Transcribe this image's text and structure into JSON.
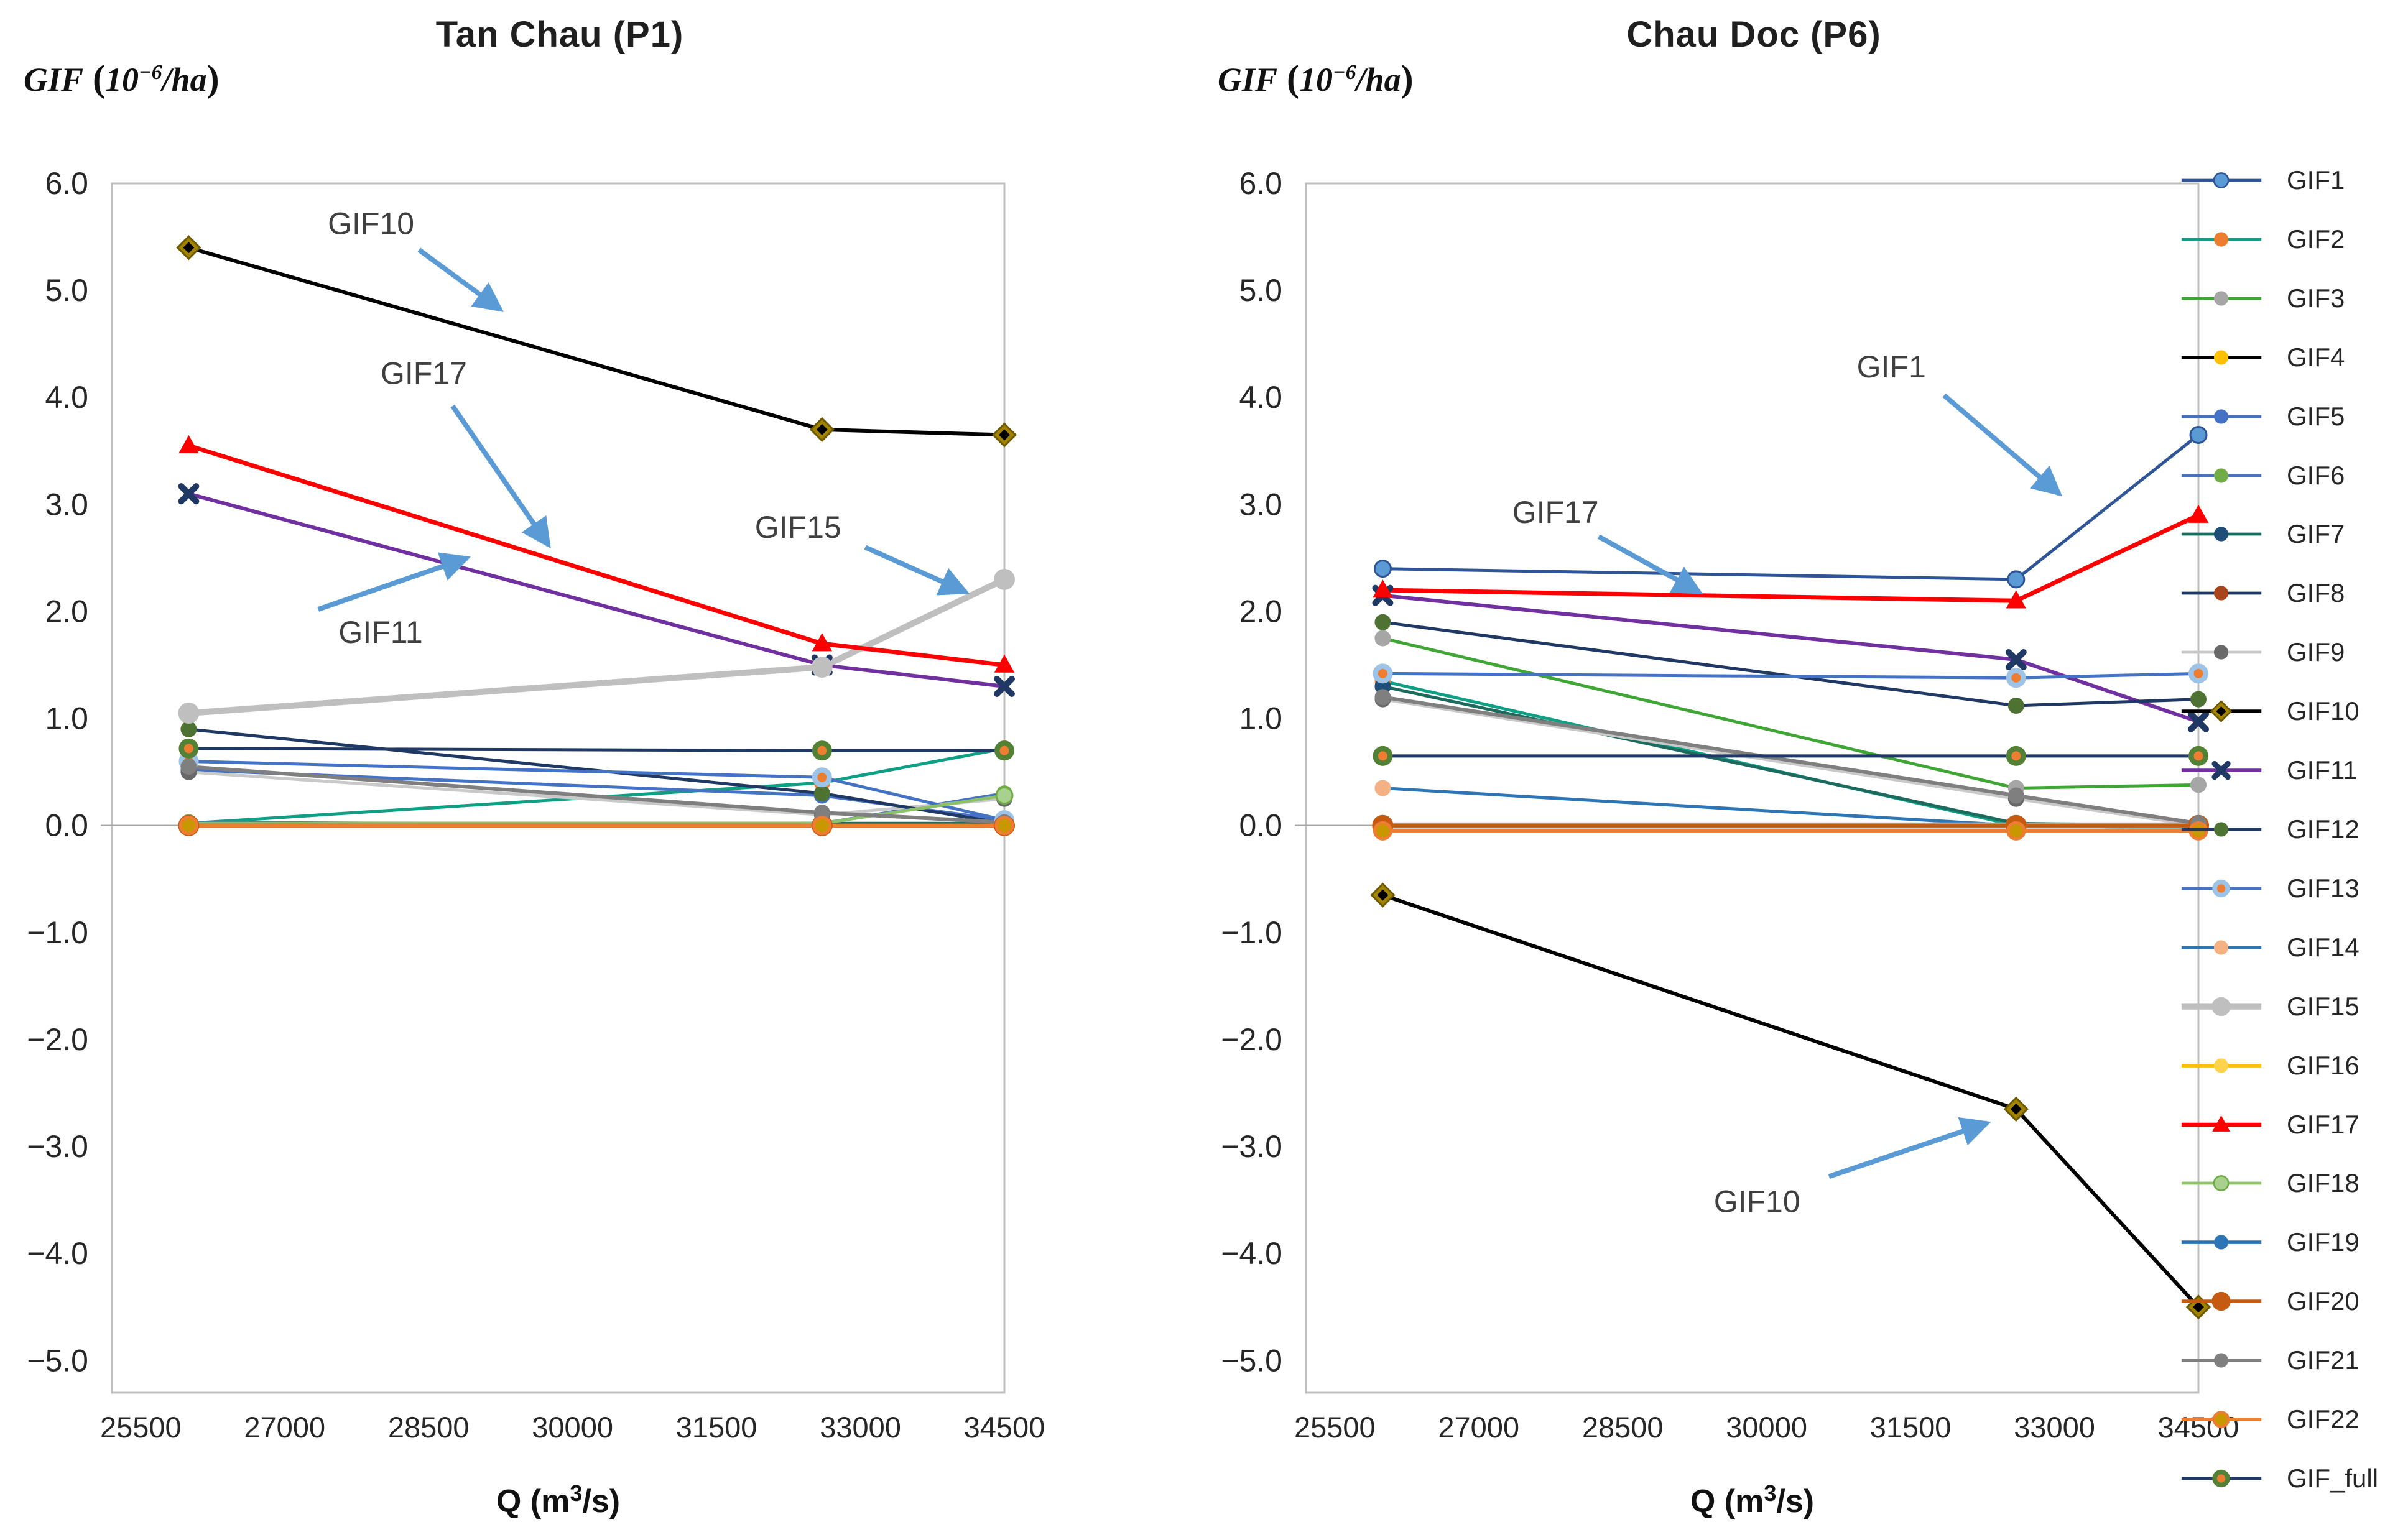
{
  "page": {
    "background": "#FFFFFF"
  },
  "axis": {
    "ylabel_gif": "GIF",
    "ylabel_open": " (",
    "ylabel_base": "10",
    "ylabel_exp": "−6",
    "ylabel_unit": "/ha",
    "ylabel_close": ")",
    "xlabel_pre": "Q (m",
    "xlabel_sup": "3",
    "xlabel_post": "/s)"
  },
  "legend": {
    "position": "right",
    "entries": [
      "GIF1",
      "GIF2",
      "GIF3",
      "GIF4",
      "GIF5",
      "GIF6",
      "GIF7",
      "GIF8",
      "GIF9",
      "GIF10",
      "GIF11",
      "GIF12",
      "GIF13",
      "GIF14",
      "GIF15",
      "GIF16",
      "GIF17",
      "GIF18",
      "GIF19",
      "GIF20",
      "GIF21",
      "GIF22",
      "GIF_full"
    ]
  },
  "series_styles": [
    {
      "name": "GIF1",
      "line": "#2F5597",
      "w": 5,
      "marker": "circle",
      "mfill": "#5B9BD5",
      "mstroke": "#2F5597",
      "mstrokew": 3
    },
    {
      "name": "GIF2",
      "line": "#0E9F84",
      "w": 5,
      "marker": "circle",
      "mfill": "#ED7D31"
    },
    {
      "name": "GIF3",
      "line": "#3FA535",
      "w": 5,
      "marker": "circle",
      "mfill": "#A6A6A6"
    },
    {
      "name": "GIF4",
      "line": "#000000",
      "w": 5,
      "marker": "circle",
      "mfill": "#FFC000"
    },
    {
      "name": "GIF5",
      "line": "#4472C4",
      "w": 5,
      "marker": "circle",
      "mfill": "#4472C4"
    },
    {
      "name": "GIF6",
      "line": "#4472C4",
      "w": 5,
      "marker": "circle",
      "mfill": "#70AD47"
    },
    {
      "name": "GIF7",
      "line": "#1D6B5E",
      "w": 5,
      "marker": "circle",
      "mfill": "#1F4E79"
    },
    {
      "name": "GIF8",
      "line": "#1F3864",
      "w": 5,
      "marker": "circle",
      "mfill": "#A9451B"
    },
    {
      "name": "GIF9",
      "line": "#C9C9C9",
      "w": 5,
      "marker": "circle",
      "mfill": "#696969"
    },
    {
      "name": "GIF10",
      "line": "#000000",
      "w": 6,
      "marker": "diamond",
      "mfill": "#A28300"
    },
    {
      "name": "GIF11",
      "line": "#7030A0",
      "w": 6,
      "marker": "x",
      "mfill": "#1F3864"
    },
    {
      "name": "GIF12",
      "line": "#203864",
      "w": 5,
      "marker": "circle",
      "mfill": "#4E7231"
    },
    {
      "name": "GIF13",
      "line": "#4472C4",
      "w": 5,
      "marker": "ring",
      "mring": "#9DC3E6",
      "mcenter": "#ED7D31"
    },
    {
      "name": "GIF14",
      "line": "#2E75B6",
      "w": 5,
      "marker": "circle",
      "mfill": "#F4B183"
    },
    {
      "name": "GIF15",
      "line": "#BFBFBF",
      "w": 10,
      "marker": "circle-big",
      "mfill": "#BFBFBF"
    },
    {
      "name": "GIF16",
      "line": "#FFC000",
      "w": 6,
      "marker": "circle",
      "mfill": "#FFD34D"
    },
    {
      "name": "GIF17",
      "line": "#FF0000",
      "w": 7,
      "marker": "triangle",
      "mfill": "#FF0000"
    },
    {
      "name": "GIF18",
      "line": "#8CC168",
      "w": 5,
      "marker": "circle",
      "mfill": "#A9D18E",
      "mstroke": "#70AD47",
      "mstrokew": 3
    },
    {
      "name": "GIF19",
      "line": "#2E75B6",
      "w": 6,
      "marker": "circle",
      "mfill": "#2E75B6"
    },
    {
      "name": "GIF20",
      "line": "#C55A11",
      "w": 6,
      "marker": "circle-big",
      "mfill": "#C55A11"
    },
    {
      "name": "GIF21",
      "line": "#7F7F7F",
      "w": 6,
      "marker": "circle",
      "mfill": "#7F7F7F"
    },
    {
      "name": "GIF22",
      "line": "#ED7D31",
      "w": 6,
      "marker": "circle",
      "mfill": "#C99700",
      "mstroke": "#ED7D31",
      "mstrokew": 5
    },
    {
      "name": "GIF_full",
      "line": "#1F3864",
      "w": 5,
      "marker": "ring",
      "mring": "#538135",
      "mcenter": "#ED7D31"
    }
  ],
  "chart_data": [
    {
      "type": "line",
      "title": "Tan Chau (P1)",
      "ylabel": "GIF (10−6/ha)",
      "xlabel": "Q (m3/s)",
      "xlim": [
        25200,
        34500
      ],
      "ylim": [
        -5.3,
        6.0
      ],
      "x_ticks": [
        25500,
        27000,
        28500,
        30000,
        31500,
        33000,
        34500
      ],
      "y_ticks": [
        6.0,
        5.0,
        4.0,
        3.0,
        2.0,
        1.0,
        0.0,
        -1.0,
        -2.0,
        -3.0,
        -4.0,
        -5.0
      ],
      "grid": "zero-line-only",
      "x": [
        26000,
        32600,
        34500
      ],
      "series": [
        {
          "name": "GIF1",
          "values": [
            0.0,
            0.0,
            0.0
          ]
        },
        {
          "name": "GIF2",
          "values": [
            0.02,
            0.4,
            0.72
          ]
        },
        {
          "name": "GIF3",
          "values": [
            0.0,
            0.0,
            0.0
          ]
        },
        {
          "name": "GIF4",
          "values": [
            0.0,
            0.0,
            0.0
          ]
        },
        {
          "name": "GIF5",
          "values": [
            0.52,
            0.28,
            0.05
          ]
        },
        {
          "name": "GIF6",
          "values": [
            0.0,
            0.02,
            0.3
          ]
        },
        {
          "name": "GIF7",
          "values": [
            0.02,
            0.02,
            0.02
          ]
        },
        {
          "name": "GIF8",
          "values": [
            0.0,
            0.0,
            0.0
          ]
        },
        {
          "name": "GIF9",
          "values": [
            0.5,
            0.1,
            0.25
          ]
        },
        {
          "name": "GIF10",
          "values": [
            5.4,
            3.7,
            3.65
          ]
        },
        {
          "name": "GIF11",
          "values": [
            3.1,
            1.5,
            1.3
          ]
        },
        {
          "name": "GIF12",
          "values": [
            0.9,
            0.3,
            0.02
          ]
        },
        {
          "name": "GIF13",
          "values": [
            0.6,
            0.45,
            0.05
          ]
        },
        {
          "name": "GIF14",
          "values": [
            0.03,
            0.0,
            0.0
          ]
        },
        {
          "name": "GIF15",
          "values": [
            1.05,
            1.48,
            2.3
          ]
        },
        {
          "name": "GIF16",
          "values": [
            0.0,
            0.0,
            0.0
          ]
        },
        {
          "name": "GIF17",
          "values": [
            3.55,
            1.7,
            1.5
          ]
        },
        {
          "name": "GIF18",
          "values": [
            0.02,
            0.02,
            0.28
          ]
        },
        {
          "name": "GIF19",
          "values": [
            0.0,
            0.0,
            0.0
          ]
        },
        {
          "name": "GIF20",
          "values": [
            0.0,
            0.0,
            0.0
          ]
        },
        {
          "name": "GIF21",
          "values": [
            0.55,
            0.12,
            0.03
          ]
        },
        {
          "name": "GIF22",
          "values": [
            0.0,
            0.0,
            0.0
          ]
        },
        {
          "name": "GIF_full",
          "values": [
            0.72,
            0.7,
            0.7
          ]
        }
      ],
      "annotations": [
        {
          "text": "GIF10",
          "lx": 27900,
          "ly": 5.62,
          "ax1": 28400,
          "ay1": 5.38,
          "ax2": 29250,
          "ay2": 4.82
        },
        {
          "text": "GIF17",
          "lx": 28450,
          "ly": 4.22,
          "ax1": 28750,
          "ay1": 3.92,
          "ax2": 29750,
          "ay2": 2.62
        },
        {
          "text": "GIF11",
          "lx": 28000,
          "ly": 1.8,
          "ax1": 27350,
          "ay1": 2.02,
          "ax2": 28900,
          "ay2": 2.5
        },
        {
          "text": "GIF15",
          "lx": 32350,
          "ly": 2.78,
          "ax1": 33050,
          "ay1": 2.6,
          "ax2": 34100,
          "ay2": 2.18
        }
      ]
    },
    {
      "type": "line",
      "title": "Chau Doc (P6)",
      "ylabel": "GIF (10−6/ha)",
      "xlabel": "Q (m3/s)",
      "xlim": [
        25200,
        34500
      ],
      "ylim": [
        -5.3,
        6.0
      ],
      "x_ticks": [
        25500,
        27000,
        28500,
        30000,
        31500,
        33000,
        34500
      ],
      "y_ticks": [
        6.0,
        5.0,
        4.0,
        3.0,
        2.0,
        1.0,
        0.0,
        -1.0,
        -2.0,
        -3.0,
        -4.0,
        -5.0
      ],
      "grid": "zero-line-only",
      "x": [
        26000,
        32600,
        34500
      ],
      "series": [
        {
          "name": "GIF1",
          "values": [
            2.4,
            2.3,
            3.65
          ]
        },
        {
          "name": "GIF2",
          "values": [
            1.35,
            0.0,
            -0.03
          ]
        },
        {
          "name": "GIF3",
          "values": [
            1.75,
            0.35,
            0.38
          ]
        },
        {
          "name": "GIF4",
          "values": [
            0.0,
            0.0,
            0.0
          ]
        },
        {
          "name": "GIF5",
          "values": [
            0.0,
            0.0,
            0.0
          ]
        },
        {
          "name": "GIF6",
          "values": [
            0.0,
            0.0,
            0.0
          ]
        },
        {
          "name": "GIF7",
          "values": [
            1.3,
            0.02,
            0.0
          ]
        },
        {
          "name": "GIF8",
          "values": [
            0.0,
            0.0,
            0.0
          ]
        },
        {
          "name": "GIF9",
          "values": [
            1.18,
            0.25,
            0.0
          ]
        },
        {
          "name": "GIF10",
          "values": [
            -0.65,
            -2.65,
            -4.5
          ]
        },
        {
          "name": "GIF11",
          "values": [
            2.15,
            1.55,
            0.97
          ]
        },
        {
          "name": "GIF12",
          "values": [
            1.9,
            1.12,
            1.18
          ]
        },
        {
          "name": "GIF13",
          "values": [
            1.42,
            1.38,
            1.42
          ]
        },
        {
          "name": "GIF14",
          "values": [
            0.35,
            0.0,
            0.0
          ]
        },
        {
          "name": "GIF15",
          "values": [
            0.0,
            0.0,
            0.0
          ]
        },
        {
          "name": "GIF16",
          "values": [
            0.0,
            0.0,
            0.0
          ]
        },
        {
          "name": "GIF17",
          "values": [
            2.2,
            2.1,
            2.9
          ]
        },
        {
          "name": "GIF18",
          "values": [
            0.0,
            0.0,
            0.0
          ]
        },
        {
          "name": "GIF19",
          "values": [
            0.0,
            0.0,
            0.0
          ]
        },
        {
          "name": "GIF20",
          "values": [
            0.0,
            0.0,
            0.0
          ]
        },
        {
          "name": "GIF21",
          "values": [
            1.2,
            0.28,
            0.02
          ]
        },
        {
          "name": "GIF22",
          "values": [
            -0.05,
            -0.05,
            -0.05
          ]
        },
        {
          "name": "GIF_full",
          "values": [
            0.65,
            0.65,
            0.65
          ]
        }
      ],
      "annotations": [
        {
          "text": "GIF1",
          "lx": 31300,
          "ly": 4.28,
          "ax1": 31850,
          "ay1": 4.02,
          "ax2": 33050,
          "ay2": 3.1
        },
        {
          "text": "GIF17",
          "lx": 27800,
          "ly": 2.92,
          "ax1": 28250,
          "ay1": 2.7,
          "ax2": 29300,
          "ay2": 2.18
        },
        {
          "text": "GIF10",
          "lx": 29900,
          "ly": -3.52,
          "ax1": 30650,
          "ay1": -3.28,
          "ax2": 32300,
          "ay2": -2.78
        }
      ]
    }
  ],
  "colors": {
    "annotation_arrow": "#5B9BD5",
    "annotation_text": "#404040",
    "axis_border": "#BFBFBF",
    "zero_line": "#A6A6A6",
    "tick_text": "#262626"
  }
}
